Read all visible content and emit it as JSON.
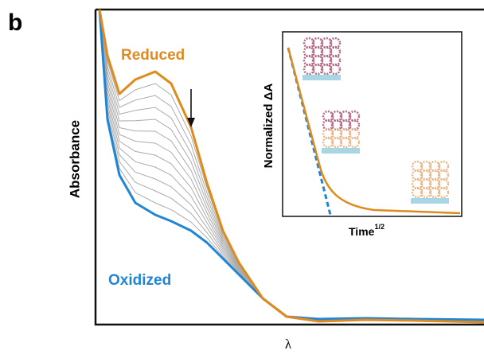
{
  "chart_data": {
    "type": "line",
    "panel_label": "b",
    "x_label": "λ",
    "y_label": "Absorbance",
    "annotations": [
      "Reduced",
      "Oxidized"
    ],
    "inset": {
      "y_label": "Normalized ΔA",
      "x_label": {
        "text": "Time",
        "superscript": "1/2"
      }
    }
  }
}
